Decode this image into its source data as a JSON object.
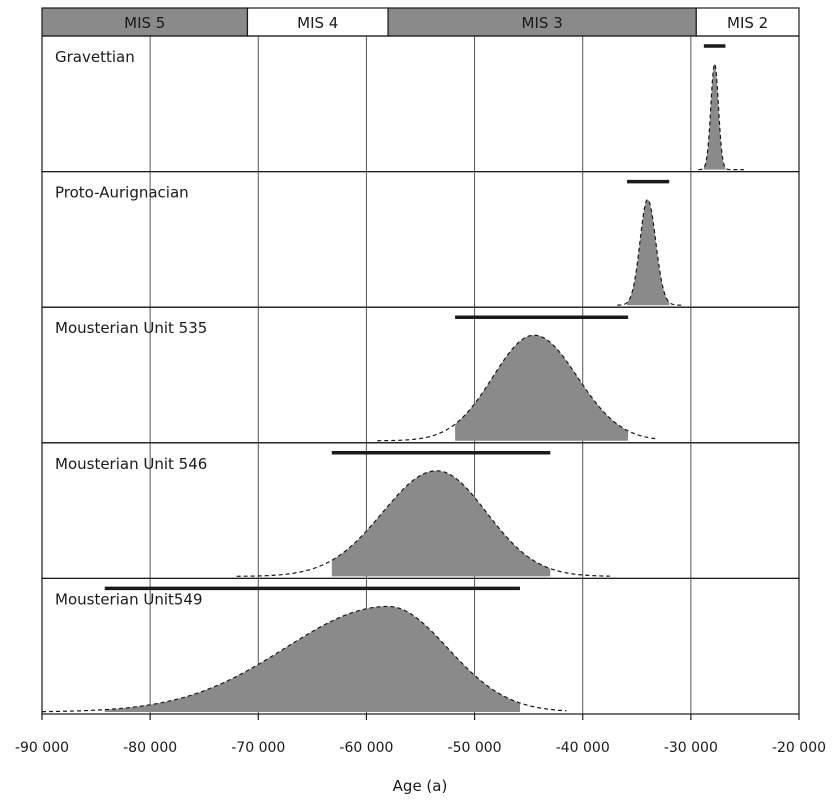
{
  "chart_data": {
    "type": "area",
    "xlabel": "Age (a)",
    "xlim": [
      -90000,
      -20000
    ],
    "x_ticks": [
      -90000,
      -80000,
      -70000,
      -60000,
      -50000,
      -40000,
      -30000,
      -20000
    ],
    "x_tick_labels": [
      "-90 000",
      "-80 000",
      "-70 000",
      "-60 000",
      "-50 000",
      "-40 000",
      "-30 000",
      "-20 000"
    ],
    "grid_x": [
      -80000,
      -70000,
      -60000,
      -50000,
      -40000,
      -30000
    ],
    "mis_stages": [
      {
        "label": "MIS 5",
        "start": -90000,
        "end": -71000,
        "fill": "#8a8a8a"
      },
      {
        "label": "MIS 4",
        "start": -71000,
        "end": -58000,
        "fill": "#ffffff"
      },
      {
        "label": "MIS 3",
        "start": -58000,
        "end": -29500,
        "fill": "#8a8a8a"
      },
      {
        "label": "MIS 2",
        "start": -29500,
        "end": -20000,
        "fill": "#ffffff"
      }
    ],
    "series": [
      {
        "name": "Gravettian",
        "peak": -27800,
        "sd_left": 350,
        "sd_right": 350,
        "curve_range": [
          -29300,
          -25100
        ],
        "shaded_range": [
          -28800,
          -26800
        ],
        "bar_range": [
          -28800,
          -26800
        ]
      },
      {
        "name": "Proto-Aurignacian",
        "peak": -34000,
        "sd_left": 700,
        "sd_right": 750,
        "curve_range": [
          -36800,
          -30800
        ],
        "shaded_range": [
          -35900,
          -32000
        ],
        "bar_range": [
          -35900,
          -32000
        ]
      },
      {
        "name": "Mousterian Unit 535",
        "peak": -44500,
        "sd_left": 3800,
        "sd_right": 4000,
        "curve_range": [
          -59000,
          -33200
        ],
        "shaded_range": [
          -51800,
          -35800
        ],
        "bar_range": [
          -51800,
          -35800
        ]
      },
      {
        "name": "Mousterian Unit 546",
        "peak": -53500,
        "sd_left": 5000,
        "sd_right": 4600,
        "curve_range": [
          -72000,
          -37500
        ],
        "shaded_range": [
          -63200,
          -43000
        ],
        "bar_range": [
          -63200,
          -43000
        ]
      },
      {
        "name": "Mousterian Unit549",
        "peak": -58000,
        "sd_left": 9500,
        "sd_right": 5500,
        "curve_range": [
          -90000,
          -41500
        ],
        "shaded_range": [
          -84200,
          -45800
        ],
        "bar_range": [
          -84200,
          -45800
        ]
      }
    ],
    "colors": {
      "fill": "#8a8a8a",
      "line": "#1a1a1a",
      "grid": "#555555",
      "border": "#1a1a1a"
    }
  }
}
